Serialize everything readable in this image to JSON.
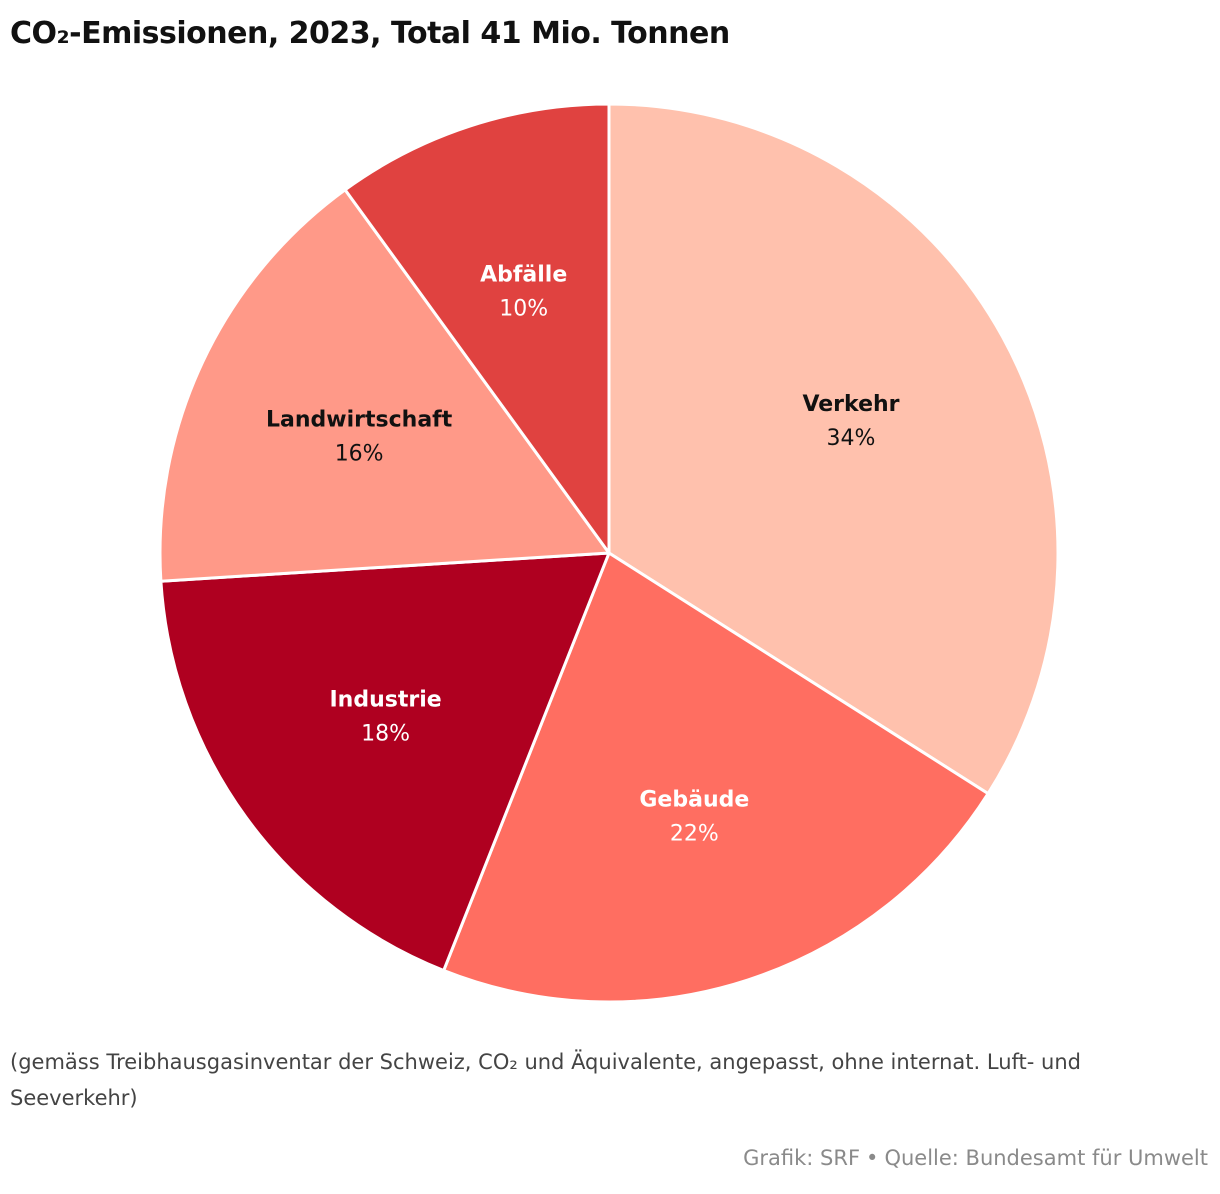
{
  "title": "CO₂-Emissionen, 2023, Total 41 Mio. Tonnen",
  "note": "(gemäss Treibhausgasinventar der Schweiz, CO₂ und Äquivalente, angepasst, ohne internat. Luft- und Seeverkehr)",
  "credit": {
    "grafik": "Grafik: SRF",
    "separator": "•",
    "quelle": "Quelle: Bundesamt für Umwelt"
  },
  "chart_data": {
    "type": "pie",
    "title": "CO₂-Emissionen, 2023, Total 41 Mio. Tonnen",
    "unit": "%",
    "slices": [
      {
        "label": "Verkehr",
        "value": 34,
        "value_label": "34%",
        "color": "#ffc1ad",
        "text_color": "#111111"
      },
      {
        "label": "Gebäude",
        "value": 22,
        "value_label": "22%",
        "color": "#ff6e61",
        "text_color": "#ffffff"
      },
      {
        "label": "Industrie",
        "value": 18,
        "value_label": "18%",
        "color": "#af0020",
        "text_color": "#ffffff"
      },
      {
        "label": "Landwirtschaft",
        "value": 16,
        "value_label": "16%",
        "color": "#ff9988",
        "text_color": "#111111"
      },
      {
        "label": "Abfälle",
        "value": 10,
        "value_label": "10%",
        "color": "#e04240",
        "text_color": "#ffffff"
      }
    ]
  }
}
